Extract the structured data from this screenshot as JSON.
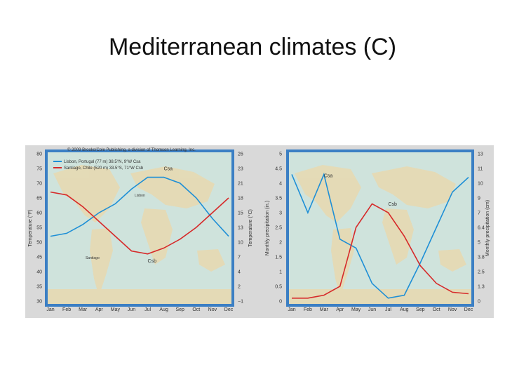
{
  "slide": {
    "title": "Mediterranean climates (C)"
  },
  "figure": {
    "credit": "© 2009 Brooks/Cole Publishing, a division of Thomson Learning, Inc.",
    "map_labels": {
      "lisbon": "Lisbon",
      "santiago": "Santiago"
    }
  },
  "colors": {
    "series_a": "#1e8fd6",
    "series_b": "#d62a2a",
    "frame": "#3b7fc4",
    "map_land": "#e8d9b0",
    "map_water": "#cfe3dc"
  },
  "chart_data": [
    {
      "type": "line",
      "title": "",
      "categories": [
        "Jan",
        "Feb",
        "Mar",
        "Apr",
        "May",
        "Jun",
        "Jul",
        "Aug",
        "Sep",
        "Oct",
        "Nov",
        "Dec"
      ],
      "ylabel": "Temperature (°F)",
      "ylabel_right": "Temperature (°C)",
      "ylim": [
        30,
        80
      ],
      "yticks": [
        "80",
        "75",
        "70",
        "65",
        "60",
        "55",
        "50",
        "45",
        "40",
        "35",
        "30"
      ],
      "yticks_right": [
        "26",
        "23",
        "21",
        "18",
        "15",
        "13",
        "10",
        "7",
        "4",
        "2",
        "−1"
      ],
      "legend": [
        "Lisbon, Portugal (77 m) 38.5°N, 9°W Csa",
        "Santiago, Chile (520 m) 33.5°S, 71°W Csb"
      ],
      "annotations": [
        "Csa",
        "Csb"
      ],
      "series": [
        {
          "name": "Lisbon, Portugal (77 m) 38.5°N, 9°W Csa",
          "values": [
            52,
            53,
            56,
            60,
            63,
            68,
            72,
            72,
            70,
            65,
            58,
            52
          ]
        },
        {
          "name": "Santiago, Chile (520 m) 33.5°S, 71°W Csb",
          "values": [
            67,
            66,
            62,
            57,
            52,
            47,
            46,
            48,
            51,
            55,
            60,
            65
          ]
        }
      ]
    },
    {
      "type": "line",
      "title": "",
      "categories": [
        "Jan",
        "Feb",
        "Mar",
        "Apr",
        "May",
        "Jun",
        "Jul",
        "Aug",
        "Sep",
        "Oct",
        "Nov",
        "Dec"
      ],
      "ylabel": "Monthly precipitation (in.)",
      "ylabel_right": "Monthly precipitation (cm)",
      "ylim": [
        0,
        5
      ],
      "yticks": [
        "5",
        "4.5",
        "4",
        "3.5",
        "3",
        "2.5",
        "2",
        "1.5",
        "1",
        "0.5",
        "0"
      ],
      "yticks_right": [
        "13",
        "11",
        "10",
        "9",
        "7",
        "6.4",
        "5",
        "3.8",
        "2.5",
        "1.3",
        "0"
      ],
      "annotations": [
        "Csa",
        "Csb"
      ],
      "series": [
        {
          "name": "Lisbon, Portugal (77 m) 38.5°N, 9°W Csa",
          "values": [
            4.3,
            3.0,
            4.3,
            2.1,
            1.8,
            0.6,
            0.1,
            0.2,
            1.3,
            2.5,
            3.7,
            4.2
          ]
        },
        {
          "name": "Santiago, Chile (520 m) 33.5°S, 71°W Csb",
          "values": [
            0.1,
            0.1,
            0.2,
            0.5,
            2.5,
            3.3,
            3.0,
            2.2,
            1.2,
            0.6,
            0.3,
            0.25
          ]
        }
      ]
    }
  ]
}
